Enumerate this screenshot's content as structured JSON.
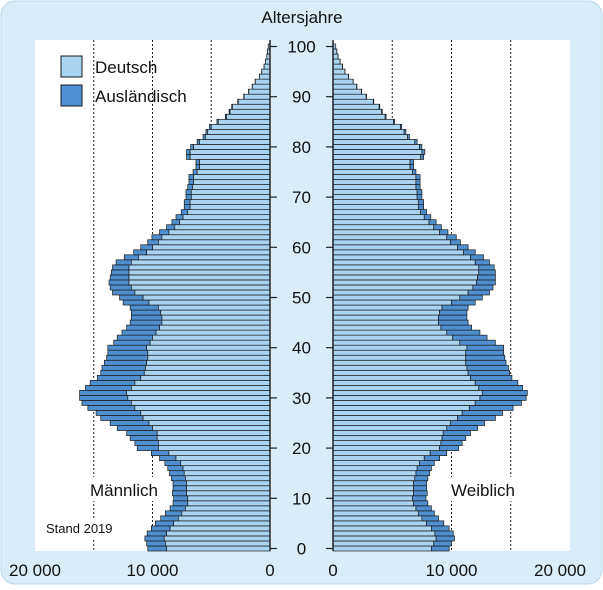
{
  "chart_data": {
    "type": "population-pyramid",
    "title": "Altersjahre",
    "stand": "Stand 2019",
    "series": [
      {
        "name": "Deutsch",
        "color": "#a8d4f2"
      },
      {
        "name": "Ausländisch",
        "color": "#4f8fd0"
      }
    ],
    "left_label": "Männlich",
    "right_label": "Weiblich",
    "age_ticks": [
      "0",
      "10",
      "20",
      "30",
      "40",
      "50",
      "60",
      "70",
      "80",
      "90",
      "100"
    ],
    "x_ticks_left": [
      "20 000",
      "10 000",
      "0"
    ],
    "x_ticks_right": [
      "0",
      "10 000",
      "20 000"
    ],
    "x_range": [
      0,
      20000
    ],
    "age_range": [
      0,
      100
    ],
    "ages": [
      0,
      1,
      2,
      3,
      4,
      5,
      6,
      7,
      8,
      9,
      10,
      11,
      12,
      13,
      14,
      15,
      16,
      17,
      18,
      19,
      20,
      21,
      22,
      23,
      24,
      25,
      26,
      27,
      28,
      29,
      30,
      31,
      32,
      33,
      34,
      35,
      36,
      37,
      38,
      39,
      40,
      41,
      42,
      43,
      44,
      45,
      46,
      47,
      48,
      49,
      50,
      51,
      52,
      53,
      54,
      55,
      56,
      57,
      58,
      59,
      60,
      61,
      62,
      63,
      64,
      65,
      66,
      67,
      68,
      69,
      70,
      71,
      72,
      73,
      74,
      75,
      76,
      77,
      78,
      79,
      80,
      81,
      82,
      83,
      84,
      85,
      86,
      87,
      88,
      89,
      90,
      91,
      92,
      93,
      94,
      95,
      96,
      97,
      98,
      99,
      100
    ],
    "male_german": [
      8800,
      8900,
      9000,
      8800,
      8500,
      8200,
      7800,
      7500,
      7200,
      7000,
      7000,
      7100,
      7100,
      7100,
      7200,
      7300,
      7400,
      7600,
      8000,
      8600,
      9500,
      9500,
      9600,
      9600,
      10000,
      10300,
      10800,
      11000,
      11500,
      11800,
      12100,
      12200,
      11800,
      11500,
      11000,
      10700,
      10600,
      10500,
      10400,
      10400,
      10500,
      10200,
      10000,
      9700,
      9400,
      9200,
      9200,
      9300,
      9500,
      10300,
      10800,
      11500,
      11800,
      12000,
      12000,
      12000,
      12000,
      11800,
      11200,
      10500,
      10000,
      9500,
      9200,
      8600,
      8100,
      7700,
      7400,
      7000,
      6800,
      6800,
      6700,
      6700,
      6600,
      6500,
      6500,
      6200,
      6000,
      6000,
      6800,
      6800,
      6500,
      6000,
      5500,
      5300,
      5000,
      4400,
      3700,
      3400,
      3200,
      2700,
      2200,
      1800,
      1500,
      1250,
      900,
      700,
      500,
      380,
      270,
      200,
      150
    ],
    "male_foreign": [
      1600,
      1600,
      1650,
      1650,
      1600,
      1550,
      1500,
      1400,
      1300,
      1250,
      1200,
      1200,
      1150,
      1150,
      1200,
      1250,
      1300,
      1350,
      1400,
      1500,
      1800,
      2000,
      2300,
      2600,
      3000,
      3300,
      3600,
      3800,
      4000,
      4200,
      4100,
      4000,
      3900,
      3800,
      3700,
      3700,
      3700,
      3600,
      3500,
      3400,
      3300,
      3100,
      3000,
      2900,
      2800,
      2700,
      2600,
      2500,
      2400,
      2200,
      2000,
      1900,
      1800,
      1700,
      1600,
      1500,
      1400,
      1300,
      1200,
      1100,
      1000,
      900,
      850,
      800,
      700,
      650,
      600,
      550,
      500,
      500,
      450,
      450,
      400,
      400,
      400,
      350,
      300,
      300,
      300,
      300,
      250,
      200,
      200,
      150,
      150,
      120,
      100,
      80,
      60,
      50,
      40,
      30,
      20,
      20,
      10,
      10,
      10,
      5,
      5,
      5,
      0
    ],
    "female_german": [
      8300,
      8500,
      8700,
      8600,
      8300,
      7900,
      7500,
      7200,
      7000,
      6800,
      6700,
      6800,
      6800,
      6800,
      6900,
      7000,
      7100,
      7300,
      7700,
      8200,
      9000,
      9100,
      9200,
      9300,
      9600,
      9900,
      10500,
      10900,
      11500,
      12000,
      12400,
      12600,
      12300,
      12000,
      11600,
      11400,
      11300,
      11200,
      11200,
      11200,
      11300,
      10700,
      10100,
      9600,
      9100,
      8900,
      8900,
      9000,
      9200,
      10000,
      10700,
      11400,
      11800,
      12100,
      12200,
      12300,
      12300,
      12000,
      11600,
      11000,
      10500,
      9900,
      9600,
      9000,
      8500,
      8100,
      7700,
      7400,
      7200,
      7200,
      7100,
      7100,
      7000,
      7000,
      7000,
      6700,
      6500,
      6500,
      7400,
      7500,
      7300,
      6900,
      6300,
      6000,
      5700,
      5100,
      4400,
      4100,
      3900,
      3400,
      2800,
      2400,
      2000,
      1700,
      1300,
      1000,
      800,
      600,
      430,
      320,
      230
    ],
    "female_foreign": [
      1500,
      1500,
      1550,
      1550,
      1500,
      1450,
      1400,
      1350,
      1300,
      1200,
      1150,
      1150,
      1100,
      1100,
      1100,
      1150,
      1200,
      1250,
      1300,
      1400,
      1600,
      1800,
      2000,
      2300,
      2600,
      2900,
      3200,
      3400,
      3700,
      3900,
      3900,
      3800,
      3700,
      3600,
      3500,
      3500,
      3500,
      3400,
      3300,
      3200,
      3100,
      3000,
      2900,
      2800,
      2600,
      2500,
      2400,
      2300,
      2200,
      2000,
      1900,
      1800,
      1700,
      1600,
      1500,
      1400,
      1300,
      1200,
      1100,
      1000,
      900,
      850,
      800,
      700,
      650,
      600,
      550,
      500,
      450,
      450,
      400,
      400,
      350,
      350,
      350,
      300,
      300,
      300,
      250,
      250,
      200,
      200,
      150,
      150,
      100,
      100,
      80,
      60,
      50,
      40,
      30,
      20,
      20,
      10,
      10,
      10,
      5,
      5,
      5,
      5,
      0
    ]
  }
}
